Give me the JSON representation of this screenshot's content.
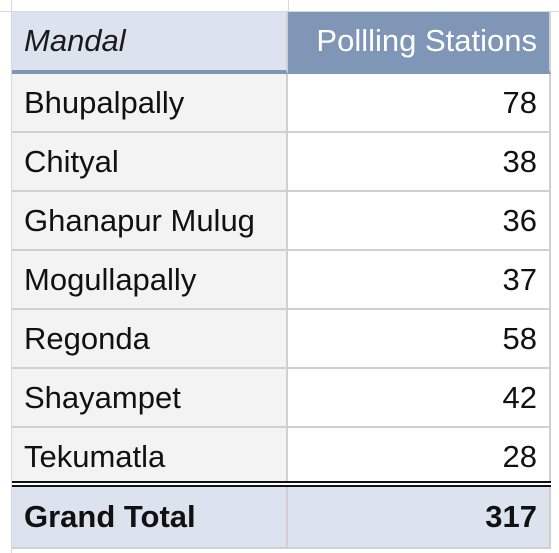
{
  "pivot_table": {
    "headers": {
      "mandal": "Mandal",
      "polling_stations": "Pollling Stations"
    },
    "rows": [
      {
        "mandal": "Bhupalpally",
        "stations": "78"
      },
      {
        "mandal": "Chityal",
        "stations": "38"
      },
      {
        "mandal": "Ghanapur Mulug",
        "stations": "36"
      },
      {
        "mandal": "Mogullapally",
        "stations": "37"
      },
      {
        "mandal": "Regonda",
        "stations": "58"
      },
      {
        "mandal": "Shayampet",
        "stations": "42"
      },
      {
        "mandal": "Tekumatla",
        "stations": "28"
      }
    ],
    "total": {
      "label": "Grand Total",
      "value": "317"
    }
  },
  "colors": {
    "header_accent": "#7f96b7",
    "header_light": "#dde3ee",
    "row_label_bg": "#f3f3f3"
  }
}
